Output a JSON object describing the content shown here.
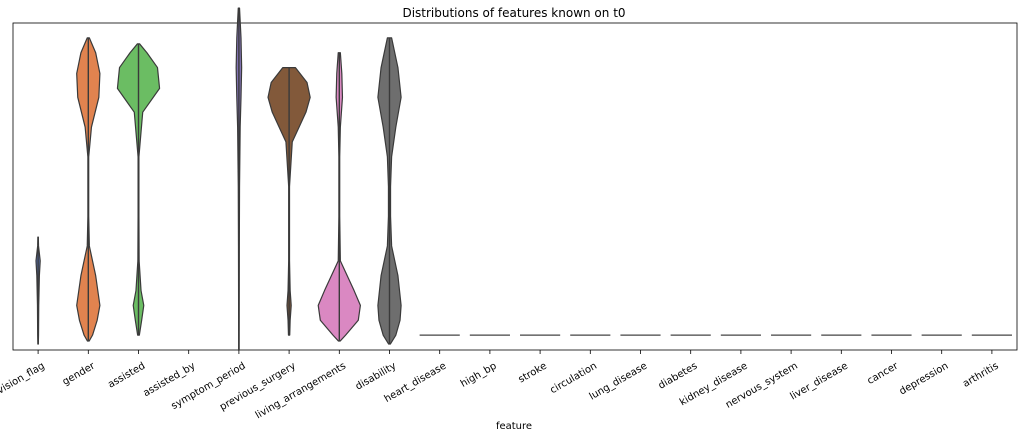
{
  "chart_data": {
    "type": "violin",
    "title": "Distributions of features known on t0",
    "xlabel": "feature",
    "ylabel": "",
    "ylim": [
      -0.05,
      1.05
    ],
    "y_ticks_visible": false,
    "grid": false,
    "legend": "none",
    "categories": [
      "revision_flag",
      "gender",
      "assisted",
      "assisted_by",
      "symptom_period",
      "previous_surgery",
      "living_arrangements",
      "disability",
      "heart_disease",
      "high_bp",
      "stroke",
      "circulation",
      "lung_disease",
      "diabetes",
      "kidney_disease",
      "nervous_system",
      "liver_disease",
      "cancer",
      "depression",
      "arthritis"
    ],
    "violins": [
      {
        "feature": "revision_flag",
        "color": "#5874b8",
        "shape": "thin",
        "density": [
          [
            -0.03,
            0.01
          ],
          [
            0.0,
            0.02
          ],
          [
            0.1,
            0.03
          ],
          [
            0.2,
            0.06
          ],
          [
            0.25,
            0.1
          ],
          [
            0.3,
            0.02
          ],
          [
            0.33,
            0.01
          ]
        ]
      },
      {
        "feature": "gender",
        "color": "#e1834f",
        "shape": "bimodal",
        "density": [
          [
            -0.02,
            0.04
          ],
          [
            0.0,
            0.2
          ],
          [
            0.05,
            0.42
          ],
          [
            0.1,
            0.55
          ],
          [
            0.2,
            0.35
          ],
          [
            0.3,
            0.05
          ],
          [
            0.4,
            0.02
          ],
          [
            0.5,
            0.02
          ],
          [
            0.6,
            0.02
          ],
          [
            0.7,
            0.15
          ],
          [
            0.8,
            0.5
          ],
          [
            0.88,
            0.55
          ],
          [
            0.95,
            0.35
          ],
          [
            1.0,
            0.05
          ]
        ]
      },
      {
        "feature": "assisted",
        "color": "#6bbd63",
        "shape": "bimodal",
        "density": [
          [
            0.0,
            0.04
          ],
          [
            0.05,
            0.15
          ],
          [
            0.1,
            0.25
          ],
          [
            0.15,
            0.12
          ],
          [
            0.25,
            0.03
          ],
          [
            0.4,
            0.02
          ],
          [
            0.6,
            0.02
          ],
          [
            0.75,
            0.2
          ],
          [
            0.83,
            1.0
          ],
          [
            0.9,
            0.9
          ],
          [
            0.95,
            0.4
          ],
          [
            0.98,
            0.05
          ]
        ]
      },
      {
        "feature": "assisted_by",
        "color": "#c44e52",
        "shape": "empty",
        "density": []
      },
      {
        "feature": "symptom_period",
        "color": "#8172b3",
        "shape": "skewed",
        "density": [
          [
            -0.05,
            0.01
          ],
          [
            0.3,
            0.02
          ],
          [
            0.5,
            0.03
          ],
          [
            0.7,
            0.06
          ],
          [
            0.8,
            0.1
          ],
          [
            0.9,
            0.13
          ],
          [
            1.0,
            0.1
          ],
          [
            1.1,
            0.03
          ]
        ]
      },
      {
        "feature": "previous_surgery",
        "color": "#82593a",
        "shape": "bimodal",
        "density": [
          [
            0.0,
            0.03
          ],
          [
            0.05,
            0.05
          ],
          [
            0.1,
            0.1
          ],
          [
            0.15,
            0.05
          ],
          [
            0.25,
            0.02
          ],
          [
            0.5,
            0.02
          ],
          [
            0.65,
            0.15
          ],
          [
            0.75,
            0.8
          ],
          [
            0.8,
            1.0
          ],
          [
            0.85,
            0.85
          ],
          [
            0.9,
            0.3
          ]
        ]
      },
      {
        "feature": "living_arrangements",
        "color": "#da88c2",
        "shape": "bimodal",
        "density": [
          [
            -0.02,
            0.04
          ],
          [
            0.0,
            0.3
          ],
          [
            0.05,
            0.9
          ],
          [
            0.1,
            1.0
          ],
          [
            0.15,
            0.7
          ],
          [
            0.25,
            0.05
          ],
          [
            0.4,
            0.02
          ],
          [
            0.6,
            0.02
          ],
          [
            0.7,
            0.05
          ],
          [
            0.8,
            0.15
          ],
          [
            0.88,
            0.12
          ],
          [
            0.95,
            0.05
          ]
        ]
      },
      {
        "feature": "disability",
        "color": "#6e6e6e",
        "shape": "bimodal",
        "density": [
          [
            -0.03,
            0.04
          ],
          [
            0.0,
            0.3
          ],
          [
            0.05,
            0.5
          ],
          [
            0.1,
            0.55
          ],
          [
            0.2,
            0.4
          ],
          [
            0.3,
            0.1
          ],
          [
            0.4,
            0.05
          ],
          [
            0.5,
            0.05
          ],
          [
            0.6,
            0.1
          ],
          [
            0.7,
            0.3
          ],
          [
            0.8,
            0.55
          ],
          [
            0.9,
            0.4
          ],
          [
            1.0,
            0.1
          ]
        ]
      },
      {
        "feature": "heart_disease",
        "color": "#cccccc",
        "shape": "flat",
        "value": 0
      },
      {
        "feature": "high_bp",
        "color": "#cccccc",
        "shape": "flat",
        "value": 0
      },
      {
        "feature": "stroke",
        "color": "#cccccc",
        "shape": "flat",
        "value": 0
      },
      {
        "feature": "circulation",
        "color": "#cccccc",
        "shape": "flat",
        "value": 0
      },
      {
        "feature": "lung_disease",
        "color": "#cccccc",
        "shape": "flat",
        "value": 0
      },
      {
        "feature": "diabetes",
        "color": "#cccccc",
        "shape": "flat",
        "value": 0
      },
      {
        "feature": "kidney_disease",
        "color": "#cccccc",
        "shape": "flat",
        "value": 0
      },
      {
        "feature": "nervous_system",
        "color": "#cccccc",
        "shape": "flat",
        "value": 0
      },
      {
        "feature": "liver_disease",
        "color": "#cccccc",
        "shape": "flat",
        "value": 0
      },
      {
        "feature": "cancer",
        "color": "#cccccc",
        "shape": "flat",
        "value": 0
      },
      {
        "feature": "depression",
        "color": "#cccccc",
        "shape": "flat",
        "value": 0
      },
      {
        "feature": "arthritis",
        "color": "#cccccc",
        "shape": "flat",
        "value": 0
      }
    ]
  }
}
